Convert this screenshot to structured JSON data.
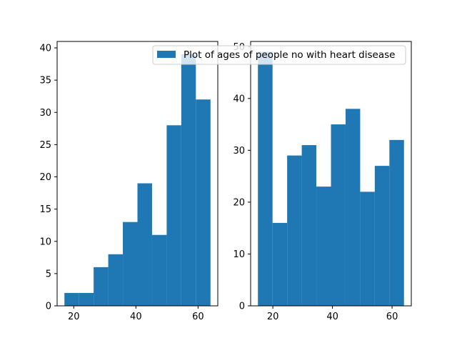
{
  "chart_data": [
    {
      "type": "bar",
      "histogram": true,
      "color": "#1f77b4",
      "bin_edges": [
        17,
        21.7,
        26.4,
        31.1,
        35.8,
        40.5,
        45.2,
        49.9,
        54.6,
        59.3,
        64
      ],
      "values": [
        2,
        2,
        6,
        8,
        13,
        19,
        11,
        28,
        39,
        32
      ],
      "xlim": [
        14.65,
        66.35
      ],
      "ylim": [
        0,
        41
      ],
      "xticks": [
        20,
        40,
        60
      ],
      "yticks": [
        0,
        5,
        10,
        15,
        20,
        25,
        30,
        35,
        40
      ],
      "grid": false
    },
    {
      "type": "bar",
      "histogram": true,
      "color": "#1f77b4",
      "bin_edges": [
        15,
        19.9,
        24.8,
        29.7,
        34.6,
        39.5,
        44.4,
        49.3,
        54.2,
        59.1,
        64
      ],
      "values": [
        49,
        16,
        29,
        31,
        23,
        35,
        38,
        22,
        27,
        32
      ],
      "xlim": [
        12.55,
        66.45
      ],
      "ylim": [
        0,
        51
      ],
      "xticks": [
        20,
        40,
        60
      ],
      "yticks": [
        0,
        10,
        20,
        30,
        40,
        50
      ],
      "grid": false,
      "legend": {
        "placement": "upper-right",
        "entries": [
          {
            "label": "Plot of ages of people no with heart disease",
            "color": "#1f77b4"
          }
        ]
      }
    }
  ]
}
